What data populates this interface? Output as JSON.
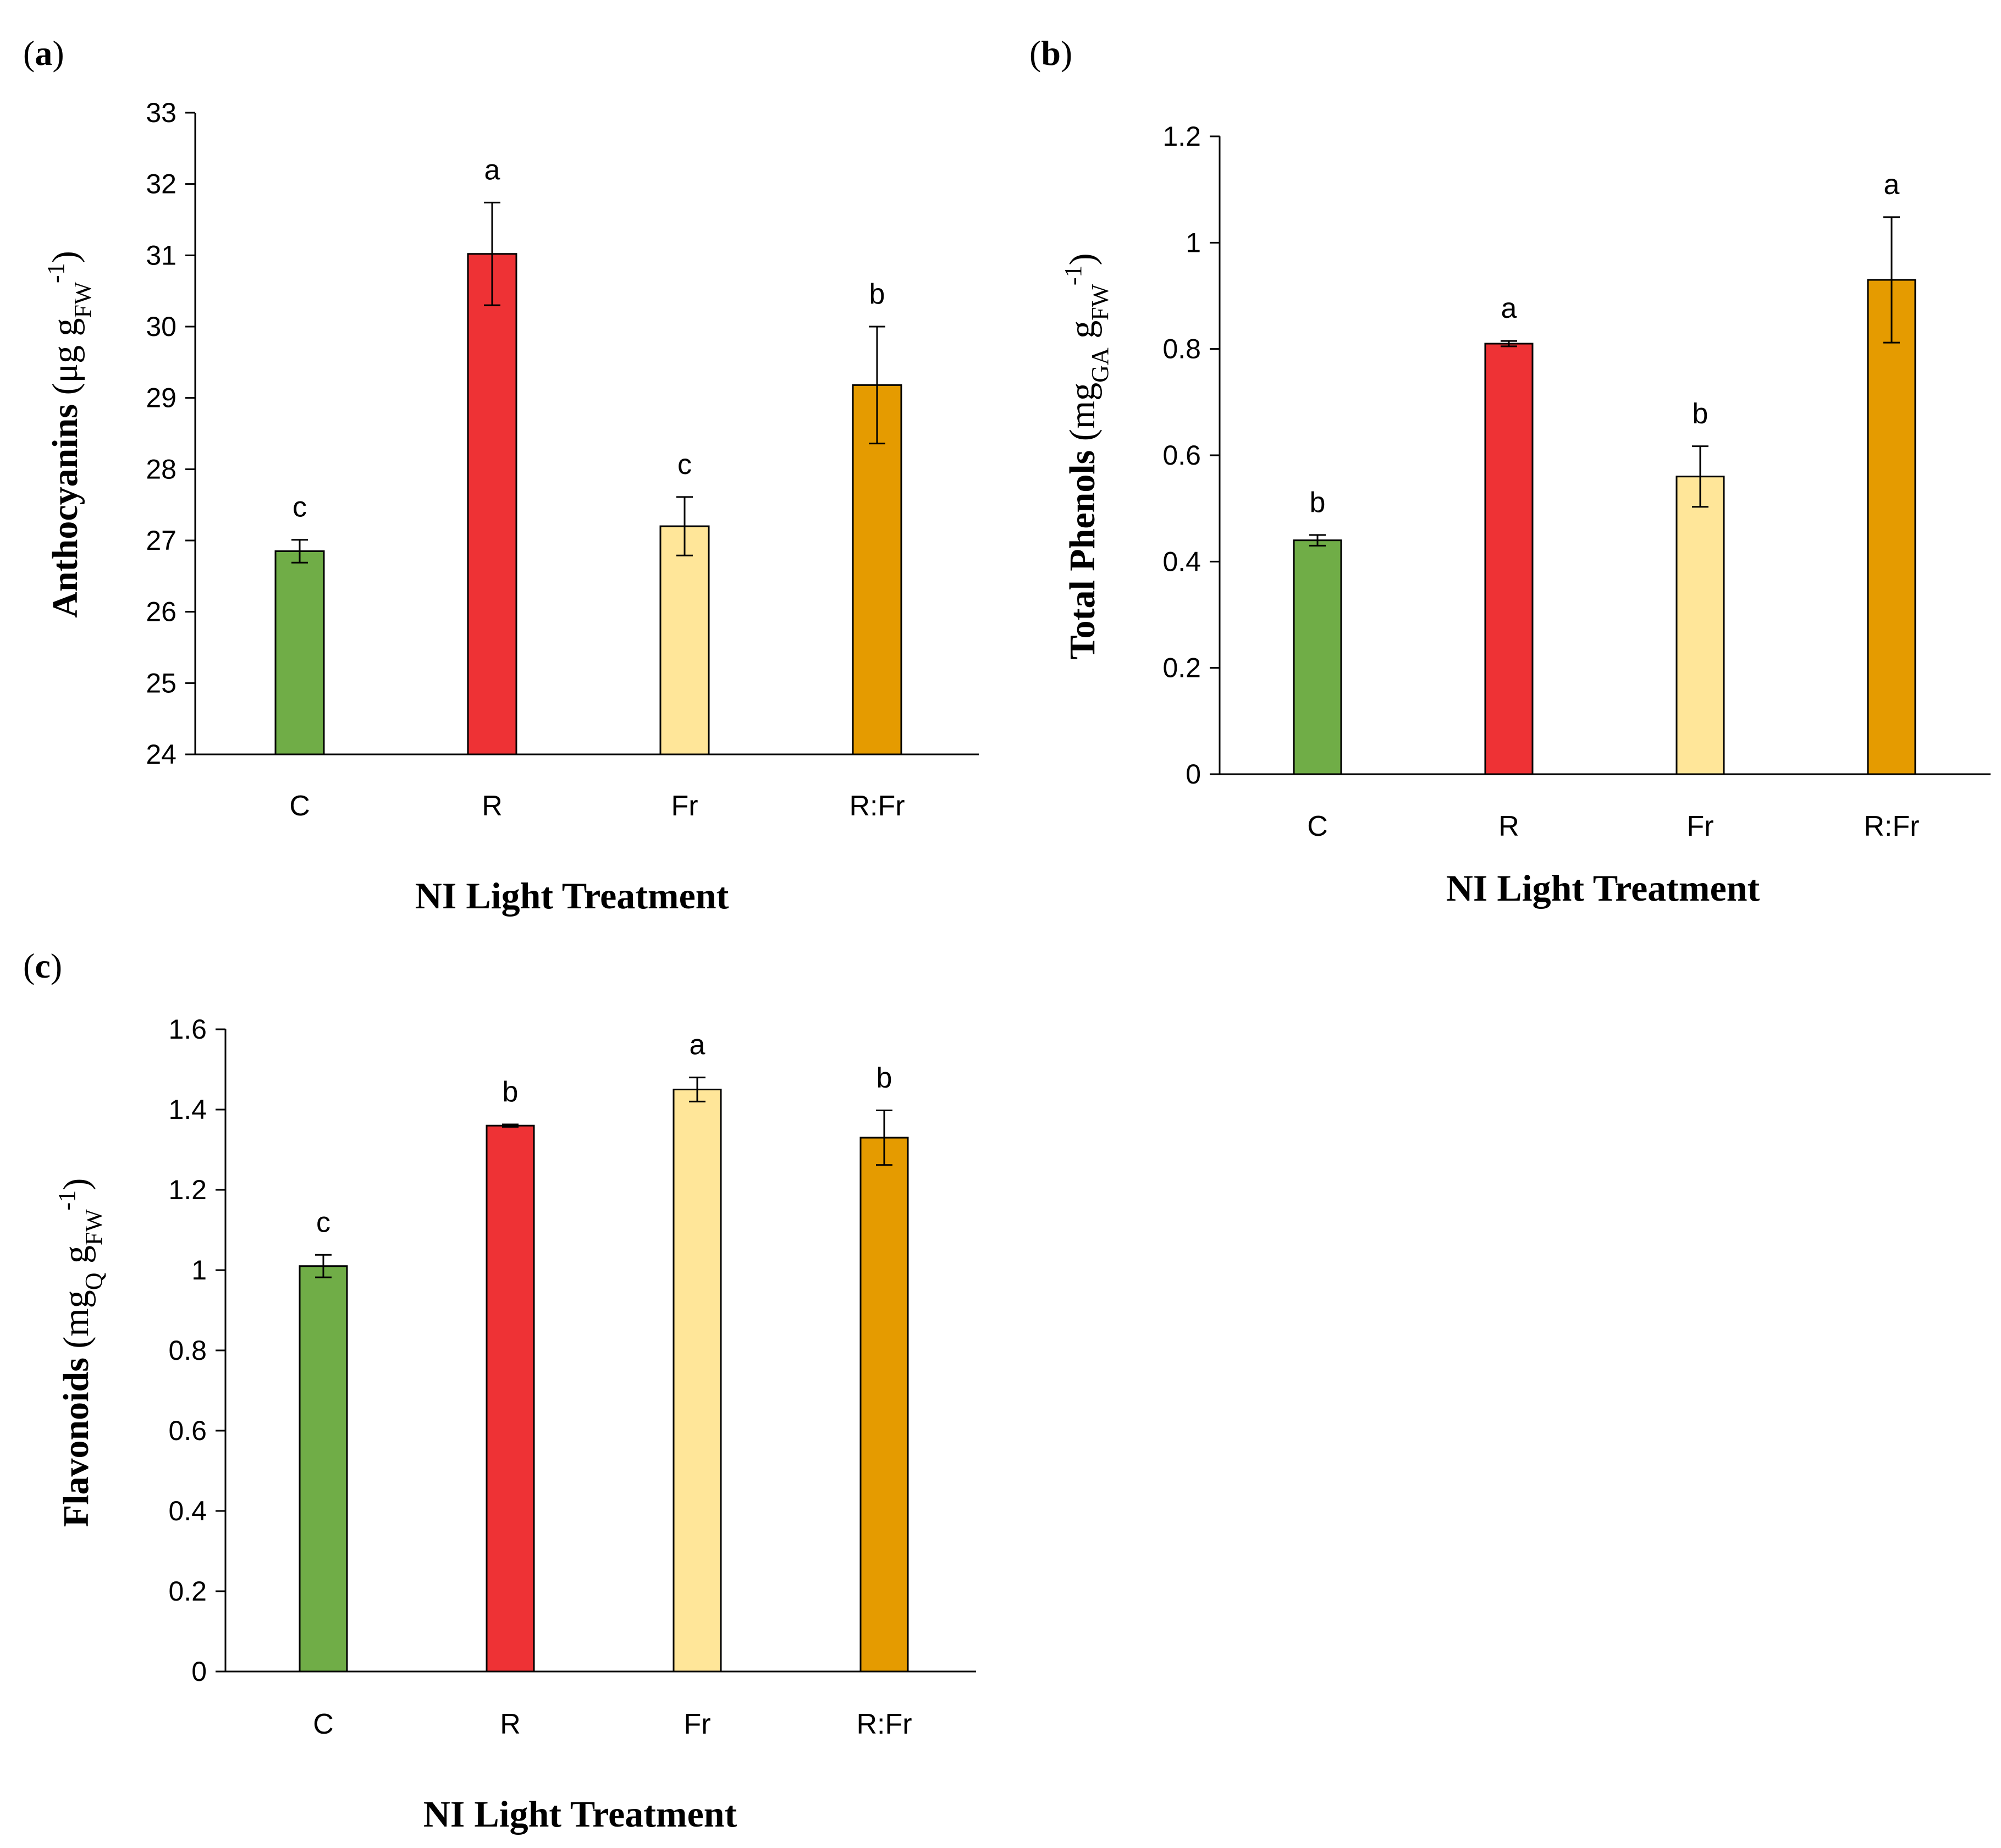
{
  "chart_data": [
    {
      "type": "bar",
      "panel_label": "a",
      "categories": [
        "C",
        "R",
        "Fr",
        "R:Fr"
      ],
      "values": [
        26.85,
        31.02,
        27.2,
        29.18
      ],
      "errors": [
        0.16,
        0.72,
        0.41,
        0.82
      ],
      "letters": [
        "c",
        "a",
        "c",
        "b"
      ],
      "colors": [
        "#70AD47",
        "#EE3235",
        "#FFE699",
        "#E59B00"
      ],
      "ylim": [
        24,
        33
      ],
      "ytick_step": 1,
      "ytick_decimals": 0,
      "ylabel": {
        "name": "Anthocyanins",
        "unit_open": " (μg g",
        "sub": "FW",
        "sup": "-1",
        "close": ")"
      },
      "xlabel": "NI Light Treatment",
      "letter_color": "#000000"
    },
    {
      "type": "bar",
      "panel_label": "b",
      "categories": [
        "C",
        "R",
        "Fr",
        "R:Fr"
      ],
      "values": [
        0.44,
        0.81,
        0.56,
        0.93
      ],
      "errors": [
        0.01,
        0.005,
        0.057,
        0.118
      ],
      "letters": [
        "b",
        "a",
        "b",
        "a"
      ],
      "colors": [
        "#70AD47",
        "#EE3235",
        "#FFE699",
        "#E59B00"
      ],
      "ylim": [
        0,
        1.2
      ],
      "ytick_step": 0.2,
      "ytick_decimals": 1,
      "ylabel": {
        "name": "Total Phenols",
        "unit_open": " (mg",
        "sub": "GA",
        "mid": " g",
        "sub2": "FW",
        "sup": "-1",
        "close": ")"
      },
      "xlabel": "NI Light Treatment",
      "letter_color": "#000000"
    },
    {
      "type": "bar",
      "panel_label": "c",
      "categories": [
        "C",
        "R",
        "Fr",
        "R:Fr"
      ],
      "values": [
        1.01,
        1.36,
        1.45,
        1.33
      ],
      "errors": [
        0.028,
        0.003,
        0.03,
        0.068
      ],
      "letters": [
        "c",
        "b",
        "a",
        "b"
      ],
      "colors": [
        "#70AD47",
        "#EE3235",
        "#FFE699",
        "#E59B00"
      ],
      "ylim": [
        0,
        1.6
      ],
      "ytick_step": 0.2,
      "ytick_decimals": 1,
      "ylabel": {
        "name": "Flavonoids",
        "unit_open": " (mg",
        "sub": "Q",
        "mid": " g",
        "sub2": "FW",
        "sup": "-1",
        "close": ")"
      },
      "xlabel": "NI Light Treatment",
      "letter_color": "#555555"
    }
  ]
}
